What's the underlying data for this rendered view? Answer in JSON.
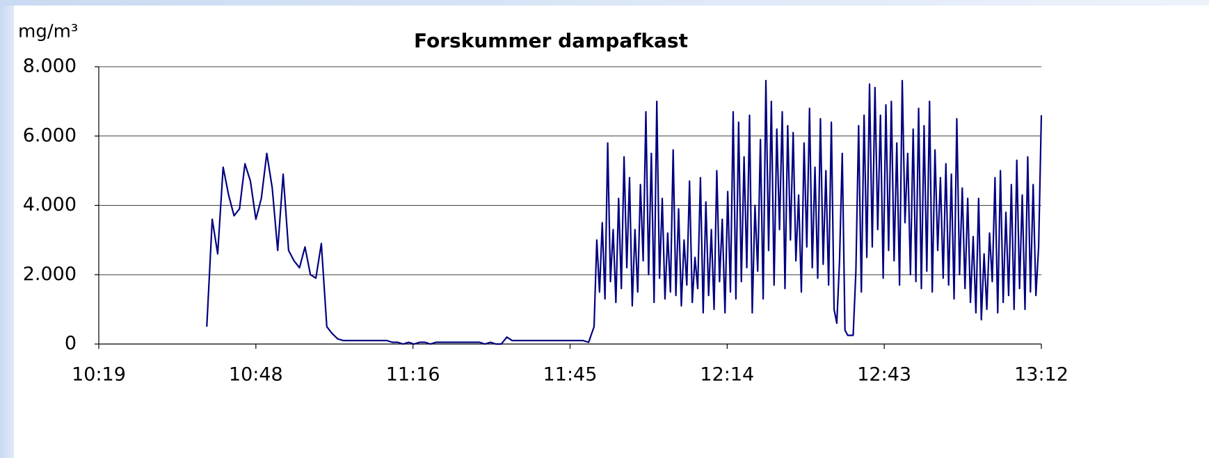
{
  "chart_data": {
    "type": "line",
    "title": "Forskummer dampafkast",
    "y_label": "mg/m³",
    "color": "#000080",
    "grid": true,
    "xlim": [
      619.2,
      792
    ],
    "xticks": [
      {
        "value": 619.2,
        "label": "10:19"
      },
      {
        "value": 648,
        "label": "10:48"
      },
      {
        "value": 676.8,
        "label": "11:16"
      },
      {
        "value": 705.6,
        "label": "11:45"
      },
      {
        "value": 734.4,
        "label": "12:14"
      },
      {
        "value": 763.2,
        "label": "12:43"
      },
      {
        "value": 792,
        "label": "13:12"
      }
    ],
    "ylim": [
      0,
      8000
    ],
    "yticks": [
      0,
      {
        "value": 2000,
        "label": "2.000"
      },
      {
        "value": 4000,
        "label": "4.000"
      },
      {
        "value": 6000,
        "label": "6.000"
      },
      {
        "value": 8000,
        "label": "8.000"
      }
    ],
    "x": [
      639,
      640,
      641,
      642,
      643,
      644,
      645,
      646,
      647,
      648,
      649,
      650,
      651,
      652,
      653,
      654,
      655,
      656,
      657,
      658,
      659,
      660,
      661,
      662,
      663,
      664,
      665,
      666,
      667,
      668,
      669,
      670,
      671,
      672,
      673,
      674,
      675,
      676,
      677,
      678,
      679,
      680,
      681,
      682,
      683,
      684,
      685,
      686,
      687,
      688,
      689,
      690,
      691,
      692,
      693,
      694,
      695,
      696,
      697,
      698,
      699,
      700,
      701,
      702,
      703,
      704,
      705,
      706,
      707,
      708,
      709,
      710,
      710.5,
      711,
      711.5,
      712,
      712.5,
      713,
      713.5,
      714,
      714.5,
      715,
      715.5,
      716,
      716.5,
      717,
      717.5,
      718,
      718.5,
      719,
      719.5,
      720,
      720.5,
      721,
      721.5,
      722,
      722.5,
      723,
      723.5,
      724,
      724.5,
      725,
      725.5,
      726,
      726.5,
      727,
      727.5,
      728,
      728.5,
      729,
      729.5,
      730,
      730.5,
      731,
      731.5,
      732,
      732.5,
      733,
      733.5,
      734,
      734.5,
      735,
      735.5,
      736,
      736.5,
      737,
      737.5,
      738,
      738.5,
      739,
      739.5,
      740,
      740.5,
      741,
      741.5,
      742,
      742.5,
      743,
      743.5,
      744,
      744.5,
      745,
      745.5,
      746,
      746.5,
      747,
      747.5,
      748,
      748.5,
      749,
      749.5,
      750,
      750.5,
      751,
      751.5,
      752,
      752.5,
      753,
      753.5,
      754,
      754.5,
      755,
      755.5,
      756,
      756.5,
      757,
      757.5,
      758,
      758.5,
      759,
      759.5,
      760,
      760.5,
      761,
      761.5,
      762,
      762.5,
      763,
      763.5,
      764,
      764.5,
      765,
      765.5,
      766,
      766.5,
      767,
      767.5,
      768,
      768.5,
      769,
      769.5,
      770,
      770.5,
      771,
      771.5,
      772,
      772.5,
      773,
      773.5,
      774,
      774.5,
      775,
      775.5,
      776,
      776.5,
      777,
      777.5,
      778,
      778.5,
      779,
      779.5,
      780,
      780.5,
      781,
      781.5,
      782,
      782.5,
      783,
      783.5,
      784,
      784.5,
      785,
      785.5,
      786,
      786.5,
      787,
      787.5,
      788,
      788.5,
      789,
      789.5,
      790,
      790.5,
      791,
      791.5,
      792
    ],
    "values": [
      500,
      3600,
      2600,
      5100,
      4300,
      3700,
      3900,
      5200,
      4700,
      3600,
      4200,
      5500,
      4500,
      2700,
      4900,
      2700,
      2400,
      2200,
      2800,
      2000,
      1900,
      2900,
      500,
      300,
      150,
      100,
      100,
      100,
      100,
      100,
      100,
      100,
      100,
      100,
      50,
      50,
      0,
      50,
      0,
      50,
      50,
      0,
      50,
      50,
      50,
      50,
      50,
      50,
      50,
      50,
      50,
      0,
      50,
      0,
      0,
      200,
      100,
      100,
      100,
      100,
      100,
      100,
      100,
      100,
      100,
      100,
      100,
      100,
      100,
      100,
      50,
      500,
      3000,
      1500,
      3500,
      1300,
      5800,
      1800,
      3300,
      1200,
      4200,
      1600,
      5400,
      2200,
      4800,
      1100,
      3300,
      1500,
      4600,
      2400,
      6700,
      2000,
      5500,
      1200,
      7000,
      1900,
      4200,
      1300,
      3200,
      1500,
      5600,
      1400,
      3900,
      1100,
      3000,
      1700,
      4700,
      1200,
      2500,
      1600,
      4800,
      900,
      4100,
      1400,
      3300,
      1000,
      5000,
      1800,
      3600,
      900,
      4400,
      1500,
      6700,
      1300,
      6400,
      1800,
      5400,
      2200,
      6600,
      900,
      4000,
      2100,
      5900,
      1300,
      7600,
      2700,
      7000,
      1700,
      6200,
      3300,
      6700,
      1600,
      6300,
      3000,
      6100,
      2400,
      4300,
      1500,
      5800,
      2800,
      6800,
      2200,
      5100,
      1900,
      6500,
      2300,
      5000,
      1700,
      6400,
      1000,
      600,
      2400,
      5500,
      400,
      250,
      250,
      250,
      2100,
      6300,
      1500,
      6600,
      2500,
      7500,
      2800,
      7400,
      3300,
      6600,
      1900,
      6900,
      2700,
      7000,
      2400,
      5800,
      1700,
      7600,
      3500,
      5500,
      2000,
      6200,
      1800,
      6800,
      1600,
      6300,
      2100,
      7000,
      1500,
      5600,
      2700,
      4800,
      1900,
      5200,
      1700,
      4900,
      1300,
      6500,
      2000,
      4500,
      1600,
      4200,
      1200,
      3100,
      900,
      4200,
      700,
      2600,
      1000,
      3200,
      1800,
      4800,
      900,
      5000,
      1200,
      3800,
      1400,
      4600,
      1000,
      5300,
      1600,
      4300,
      1000,
      5400,
      1500,
      4600,
      1400,
      2800,
      6600
    ]
  }
}
